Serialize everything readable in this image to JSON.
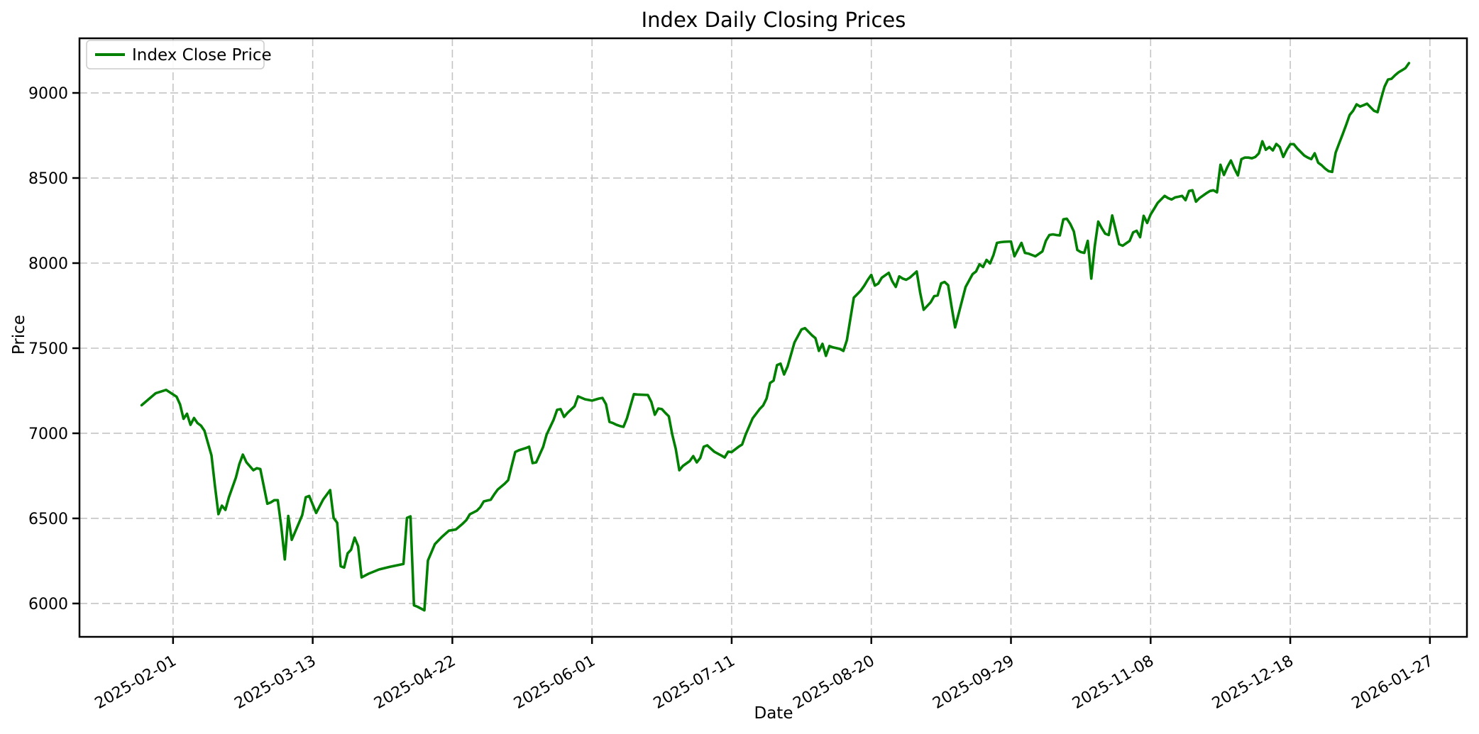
{
  "figure": {
    "background": "#ffffff"
  },
  "chart_data": {
    "type": "line",
    "title": "Index Daily Closing Prices",
    "xlabel": "Date",
    "ylabel": "Price",
    "grid": {
      "visible": true,
      "style": "dashed",
      "color": "#c4c4c4"
    },
    "legend": {
      "position": "upper left",
      "entries": [
        {
          "label": "Index Close Price",
          "color": "#008000"
        }
      ]
    },
    "x_axis": {
      "start_date": "2025-01-23",
      "tick_labels": [
        "2025-02-01",
        "2025-03-13",
        "2025-04-22",
        "2025-06-01",
        "2025-07-11",
        "2025-08-20",
        "2025-09-29",
        "2025-11-08",
        "2025-12-18",
        "2026-01-27"
      ],
      "tick_day_offsets": [
        9,
        49,
        89,
        129,
        169,
        209,
        249,
        289,
        329,
        369
      ],
      "xlim_day_offsets": [
        -17.8,
        379.6
      ],
      "tick_rotation_deg": 30
    },
    "y_axis": {
      "tick_labels": [
        "6000",
        "6500",
        "7000",
        "7500",
        "8000",
        "8500",
        "9000"
      ],
      "tick_values": [
        6000,
        6500,
        7000,
        7500,
        8000,
        8500,
        9000
      ],
      "ylim": [
        5804,
        9321
      ]
    },
    "series": [
      {
        "name": "Index Close Price",
        "color": "#008000",
        "points": [
          [
            0,
            7165
          ],
          [
            2,
            7200
          ],
          [
            4,
            7235
          ],
          [
            7,
            7255
          ],
          [
            10,
            7215
          ],
          [
            11,
            7170
          ],
          [
            12,
            7085
          ],
          [
            13,
            7115
          ],
          [
            14,
            7050
          ],
          [
            15,
            7090
          ],
          [
            16,
            7060
          ],
          [
            17,
            7045
          ],
          [
            18,
            7015
          ],
          [
            20,
            6870
          ],
          [
            21,
            6690
          ],
          [
            22,
            6525
          ],
          [
            23,
            6575
          ],
          [
            24,
            6550
          ],
          [
            25,
            6625
          ],
          [
            27,
            6740
          ],
          [
            28,
            6820
          ],
          [
            29,
            6875
          ],
          [
            30,
            6830
          ],
          [
            32,
            6783
          ],
          [
            33,
            6795
          ],
          [
            34,
            6790
          ],
          [
            36,
            6586
          ],
          [
            37,
            6594
          ],
          [
            38,
            6607
          ],
          [
            39,
            6607
          ],
          [
            40,
            6453
          ],
          [
            41,
            6259
          ],
          [
            42,
            6514
          ],
          [
            43,
            6374
          ],
          [
            45,
            6470
          ],
          [
            46,
            6520
          ],
          [
            47,
            6624
          ],
          [
            48,
            6632
          ],
          [
            50,
            6532
          ],
          [
            52,
            6611
          ],
          [
            54,
            6666
          ],
          [
            55,
            6503
          ],
          [
            56,
            6474
          ],
          [
            57,
            6219
          ],
          [
            58,
            6211
          ],
          [
            59,
            6294
          ],
          [
            60,
            6316
          ],
          [
            61,
            6387
          ],
          [
            62,
            6337
          ],
          [
            63,
            6153
          ],
          [
            65,
            6175
          ],
          [
            68,
            6200
          ],
          [
            71,
            6215
          ],
          [
            75,
            6232
          ],
          [
            76,
            6503
          ],
          [
            77,
            6512
          ],
          [
            78,
            5989
          ],
          [
            79,
            5981
          ],
          [
            81,
            5960
          ],
          [
            82,
            6253
          ],
          [
            84,
            6349
          ],
          [
            86,
            6391
          ],
          [
            88,
            6428
          ],
          [
            90,
            6435
          ],
          [
            92,
            6470
          ],
          [
            93,
            6490
          ],
          [
            94,
            6524
          ],
          [
            96,
            6545
          ],
          [
            97,
            6566
          ],
          [
            98,
            6600
          ],
          [
            100,
            6610
          ],
          [
            101,
            6641
          ],
          [
            102,
            6670
          ],
          [
            104,
            6704
          ],
          [
            105,
            6725
          ],
          [
            106,
            6808
          ],
          [
            107,
            6890
          ],
          [
            108,
            6900
          ],
          [
            110,
            6913
          ],
          [
            111,
            6921
          ],
          [
            112,
            6825
          ],
          [
            113,
            6829
          ],
          [
            115,
            6920
          ],
          [
            116,
            6992
          ],
          [
            118,
            7080
          ],
          [
            119,
            7138
          ],
          [
            120,
            7142
          ],
          [
            121,
            7096
          ],
          [
            122,
            7120
          ],
          [
            124,
            7159
          ],
          [
            125,
            7217
          ],
          [
            127,
            7200
          ],
          [
            129,
            7192
          ],
          [
            131,
            7204
          ],
          [
            132,
            7208
          ],
          [
            133,
            7171
          ],
          [
            134,
            7067
          ],
          [
            135,
            7060
          ],
          [
            136,
            7050
          ],
          [
            137,
            7043
          ],
          [
            138,
            7038
          ],
          [
            139,
            7088
          ],
          [
            141,
            7230
          ],
          [
            142,
            7228
          ],
          [
            145,
            7225
          ],
          [
            146,
            7184
          ],
          [
            147,
            7109
          ],
          [
            148,
            7146
          ],
          [
            149,
            7142
          ],
          [
            150,
            7120
          ],
          [
            151,
            7100
          ],
          [
            152,
            6992
          ],
          [
            153,
            6908
          ],
          [
            154,
            6783
          ],
          [
            155,
            6808
          ],
          [
            157,
            6837
          ],
          [
            158,
            6866
          ],
          [
            159,
            6829
          ],
          [
            160,
            6855
          ],
          [
            161,
            6921
          ],
          [
            162,
            6929
          ],
          [
            164,
            6892
          ],
          [
            166,
            6870
          ],
          [
            167,
            6858
          ],
          [
            168,
            6892
          ],
          [
            169,
            6890
          ],
          [
            171,
            6921
          ],
          [
            172,
            6934
          ],
          [
            173,
            6992
          ],
          [
            175,
            7088
          ],
          [
            177,
            7142
          ],
          [
            178,
            7163
          ],
          [
            179,
            7205
          ],
          [
            180,
            7296
          ],
          [
            181,
            7309
          ],
          [
            182,
            7401
          ],
          [
            183,
            7409
          ],
          [
            184,
            7346
          ],
          [
            185,
            7392
          ],
          [
            186,
            7463
          ],
          [
            187,
            7534
          ],
          [
            189,
            7610
          ],
          [
            190,
            7618
          ],
          [
            191,
            7597
          ],
          [
            192,
            7576
          ],
          [
            193,
            7559
          ],
          [
            194,
            7484
          ],
          [
            195,
            7526
          ],
          [
            196,
            7455
          ],
          [
            197,
            7513
          ],
          [
            198,
            7505
          ],
          [
            200,
            7496
          ],
          [
            201,
            7484
          ],
          [
            202,
            7547
          ],
          [
            203,
            7672
          ],
          [
            204,
            7797
          ],
          [
            205,
            7818
          ],
          [
            206,
            7839
          ],
          [
            207,
            7868
          ],
          [
            208,
            7902
          ],
          [
            209,
            7931
          ],
          [
            210,
            7868
          ],
          [
            211,
            7880
          ],
          [
            212,
            7914
          ],
          [
            214,
            7943
          ],
          [
            215,
            7893
          ],
          [
            216,
            7860
          ],
          [
            217,
            7922
          ],
          [
            218,
            7909
          ],
          [
            219,
            7902
          ],
          [
            220,
            7914
          ],
          [
            222,
            7951
          ],
          [
            223,
            7826
          ],
          [
            224,
            7726
          ],
          [
            226,
            7770
          ],
          [
            227,
            7806
          ],
          [
            228,
            7810
          ],
          [
            229,
            7881
          ],
          [
            230,
            7889
          ],
          [
            231,
            7870
          ],
          [
            232,
            7743
          ],
          [
            233,
            7622
          ],
          [
            235,
            7780
          ],
          [
            236,
            7860
          ],
          [
            238,
            7935
          ],
          [
            239,
            7951
          ],
          [
            240,
            7993
          ],
          [
            241,
            7977
          ],
          [
            242,
            8019
          ],
          [
            243,
            7998
          ],
          [
            244,
            8048
          ],
          [
            245,
            8119
          ],
          [
            246,
            8123
          ],
          [
            247,
            8125
          ],
          [
            249,
            8127
          ],
          [
            250,
            8040
          ],
          [
            252,
            8119
          ],
          [
            253,
            8060
          ],
          [
            254,
            8056
          ],
          [
            255,
            8048
          ],
          [
            256,
            8040
          ],
          [
            258,
            8069
          ],
          [
            259,
            8131
          ],
          [
            260,
            8165
          ],
          [
            261,
            8169
          ],
          [
            262,
            8165
          ],
          [
            263,
            8163
          ],
          [
            264,
            8257
          ],
          [
            265,
            8261
          ],
          [
            266,
            8230
          ],
          [
            267,
            8186
          ],
          [
            268,
            8077
          ],
          [
            269,
            8065
          ],
          [
            270,
            8060
          ],
          [
            271,
            8131
          ],
          [
            272,
            7909
          ],
          [
            273,
            8100
          ],
          [
            274,
            8244
          ],
          [
            275,
            8206
          ],
          [
            276,
            8173
          ],
          [
            277,
            8165
          ],
          [
            278,
            8280
          ],
          [
            280,
            8111
          ],
          [
            281,
            8102
          ],
          [
            283,
            8131
          ],
          [
            284,
            8181
          ],
          [
            285,
            8190
          ],
          [
            286,
            8152
          ],
          [
            287,
            8278
          ],
          [
            288,
            8236
          ],
          [
            289,
            8286
          ],
          [
            290,
            8319
          ],
          [
            291,
            8353
          ],
          [
            293,
            8395
          ],
          [
            294,
            8382
          ],
          [
            295,
            8374
          ],
          [
            296,
            8386
          ],
          [
            297,
            8390
          ],
          [
            298,
            8395
          ],
          [
            299,
            8370
          ],
          [
            300,
            8424
          ],
          [
            301,
            8428
          ],
          [
            302,
            8361
          ],
          [
            303,
            8382
          ],
          [
            305,
            8411
          ],
          [
            306,
            8424
          ],
          [
            307,
            8428
          ],
          [
            308,
            8416
          ],
          [
            309,
            8578
          ],
          [
            310,
            8518
          ],
          [
            311,
            8565
          ],
          [
            312,
            8603
          ],
          [
            313,
            8555
          ],
          [
            314,
            8515
          ],
          [
            315,
            8611
          ],
          [
            316,
            8620
          ],
          [
            317,
            8620
          ],
          [
            318,
            8616
          ],
          [
            319,
            8624
          ],
          [
            320,
            8645
          ],
          [
            321,
            8716
          ],
          [
            322,
            8666
          ],
          [
            323,
            8682
          ],
          [
            324,
            8662
          ],
          [
            325,
            8700
          ],
          [
            326,
            8682
          ],
          [
            327,
            8624
          ],
          [
            328,
            8666
          ],
          [
            329,
            8699
          ],
          [
            330,
            8699
          ],
          [
            331,
            8674
          ],
          [
            333,
            8632
          ],
          [
            334,
            8620
          ],
          [
            335,
            8611
          ],
          [
            336,
            8645
          ],
          [
            337,
            8590
          ],
          [
            338,
            8575
          ],
          [
            339,
            8555
          ],
          [
            340,
            8540
          ],
          [
            341,
            8536
          ],
          [
            342,
            8649
          ],
          [
            343,
            8703
          ],
          [
            344,
            8757
          ],
          [
            345,
            8812
          ],
          [
            346,
            8870
          ],
          [
            347,
            8895
          ],
          [
            348,
            8933
          ],
          [
            349,
            8920
          ],
          [
            350,
            8928
          ],
          [
            351,
            8937
          ],
          [
            352,
            8916
          ],
          [
            353,
            8895
          ],
          [
            354,
            8887
          ],
          [
            355,
            8966
          ],
          [
            356,
            9037
          ],
          [
            357,
            9079
          ],
          [
            358,
            9083
          ],
          [
            359,
            9104
          ],
          [
            360,
            9121
          ],
          [
            361,
            9133
          ],
          [
            362,
            9146
          ],
          [
            363,
            9175
          ]
        ]
      }
    ]
  }
}
